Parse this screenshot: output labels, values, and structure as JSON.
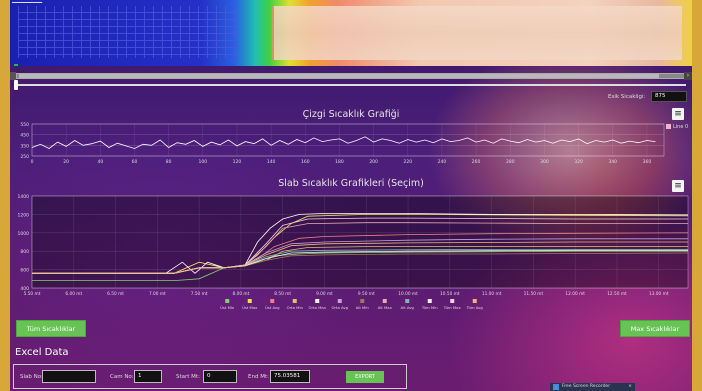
{
  "thermal": {
    "label": "━━━━━━━━━━"
  },
  "controls": {
    "esik_label": "Esik Sicakligi:",
    "esik_value": "875"
  },
  "line_chart": {
    "title": "Çizgi Sıcaklık Grafiği",
    "legend": "Line 0"
  },
  "slab_chart": {
    "title": "Slab Sıcaklık Grafikleri (Seçim)"
  },
  "buttons": {
    "tum": "Tüm Sıcaklıklar",
    "max": "Max Sıcaklıklar",
    "export": "EXPORT"
  },
  "excel": {
    "title": "Excel Data",
    "slab_no_label": "Slab No:",
    "slab_no_value": "",
    "cam_no_label": "Cam No:",
    "cam_no_value": "1",
    "start_label": "Start Mt:",
    "start_value": "0",
    "end_label": "End Mt:",
    "end_value": "75.03581"
  },
  "recorder": {
    "label": "Free Screen Recorder",
    "close": "×"
  },
  "colors": {
    "accent_green": "#67c354",
    "line_series": "#ffffff"
  },
  "chart_data": [
    {
      "type": "line",
      "title": "Çizgi Sıcaklık Grafiği",
      "xlabel": "",
      "ylabel": "",
      "xlim": [
        0,
        370
      ],
      "ylim": [
        250,
        550
      ],
      "xticks": [
        0,
        20,
        40,
        60,
        80,
        100,
        120,
        140,
        160,
        180,
        200,
        220,
        240,
        260,
        280,
        300,
        320,
        340,
        360
      ],
      "yticks": [
        250,
        350,
        450,
        550
      ],
      "legend": "top-right",
      "series": [
        {
          "name": "Line 0",
          "x": [
            0,
            5,
            10,
            15,
            20,
            25,
            30,
            35,
            40,
            45,
            50,
            55,
            60,
            65,
            70,
            75,
            80,
            85,
            90,
            95,
            100,
            105,
            110,
            115,
            120,
            125,
            130,
            135,
            140,
            145,
            150,
            155,
            160,
            165,
            170,
            175,
            180,
            185,
            190,
            195,
            200,
            205,
            210,
            215,
            220,
            225,
            230,
            235,
            240,
            245,
            250,
            255,
            260,
            265,
            270,
            275,
            280,
            285,
            290,
            295,
            300,
            305,
            310,
            315,
            320,
            325,
            330,
            335,
            340,
            345,
            350,
            355,
            360,
            365
          ],
          "y": [
            330,
            360,
            320,
            380,
            340,
            395,
            350,
            365,
            390,
            330,
            370,
            345,
            320,
            360,
            350,
            400,
            330,
            375,
            360,
            395,
            340,
            380,
            355,
            400,
            345,
            385,
            365,
            410,
            350,
            395,
            360,
            405,
            375,
            420,
            385,
            400,
            410,
            370,
            395,
            430,
            380,
            410,
            395,
            370,
            405,
            380,
            400,
            375,
            410,
            385,
            395,
            420,
            380,
            400,
            370,
            410,
            390,
            375,
            405,
            380,
            395,
            370,
            400,
            385,
            410,
            365,
            395,
            380,
            400,
            370,
            390,
            375,
            395,
            385
          ]
        }
      ]
    },
    {
      "type": "line",
      "title": "Slab Sıcaklık Grafikleri (Seçim)",
      "xlabel": "",
      "ylabel": "",
      "categories": [
        "5.50 mt",
        "6.00 mt",
        "6.50 mt",
        "7.00 mt",
        "7.50 mt",
        "8.00 mt",
        "8.50 mt",
        "9.00 mt",
        "9.50 mt",
        "10.00 mt",
        "10.50 mt",
        "11.00 mt",
        "11.50 mt",
        "12.00 mt",
        "12.50 mt",
        "13.00 mt"
      ],
      "xlim": [
        5.5,
        13.35
      ],
      "ylim": [
        400,
        1400
      ],
      "yticks": [
        400,
        600,
        800,
        1000,
        1200,
        1400
      ],
      "legend": "bottom",
      "series": [
        {
          "name": "Üst Min",
          "color": "#7fd36b",
          "x": [
            5.5,
            7.2,
            7.5,
            7.8,
            8.05,
            8.2,
            8.4,
            8.7,
            9.0,
            10,
            11,
            12,
            13.35
          ],
          "y": [
            480,
            480,
            500,
            620,
            640,
            690,
            750,
            770,
            780,
            790,
            795,
            800,
            800
          ]
        },
        {
          "name": "Üst Max",
          "color": "#f0e060",
          "x": [
            5.5,
            7.2,
            7.5,
            7.8,
            8.05,
            8.2,
            8.4,
            8.6,
            8.8,
            9.5,
            10,
            11,
            12,
            13.35
          ],
          "y": [
            560,
            560,
            680,
            620,
            650,
            760,
            950,
            1100,
            1180,
            1200,
            1200,
            1195,
            1190,
            1185
          ]
        },
        {
          "name": "Üst Avg",
          "color": "#f08080",
          "x": [
            5.5,
            7.2,
            7.5,
            7.8,
            8.05,
            8.2,
            8.4,
            8.7,
            9.0,
            10,
            11,
            12,
            13.35
          ],
          "y": [
            560,
            560,
            620,
            620,
            640,
            720,
            850,
            940,
            960,
            980,
            990,
            995,
            1000
          ]
        },
        {
          "name": "Orta Min",
          "color": "#e0c070",
          "x": [
            5.5,
            7.2,
            7.5,
            7.8,
            8.05,
            8.3,
            8.5,
            8.8,
            9.5,
            10,
            11,
            12,
            13.35
          ],
          "y": [
            560,
            560,
            620,
            620,
            650,
            700,
            800,
            840,
            850,
            850,
            850,
            850,
            850
          ]
        },
        {
          "name": "Orta Max",
          "color": "#ffffff",
          "x": [
            5.5,
            7.1,
            7.3,
            7.45,
            7.6,
            7.8,
            8.05,
            8.2,
            8.35,
            8.5,
            8.7,
            9.0,
            10,
            11,
            12,
            13.35
          ],
          "y": [
            560,
            560,
            680,
            560,
            680,
            620,
            650,
            900,
            1050,
            1150,
            1200,
            1210,
            1210,
            1200,
            1200,
            1195
          ]
        },
        {
          "name": "Orta Avg",
          "color": "#c9a0d8",
          "x": [
            5.5,
            7.2,
            7.5,
            7.8,
            8.05,
            8.3,
            8.6,
            9.0,
            10,
            11,
            12,
            13.35
          ],
          "y": [
            560,
            560,
            620,
            620,
            650,
            780,
            880,
            900,
            920,
            930,
            935,
            935
          ]
        },
        {
          "name": "Alt Min",
          "color": "#9c7a50",
          "x": [
            5.5,
            7.2,
            7.5,
            7.8,
            8.05,
            8.3,
            8.6,
            9.0,
            10,
            11,
            12,
            13.35
          ],
          "y": [
            560,
            560,
            620,
            620,
            640,
            700,
            750,
            760,
            770,
            770,
            775,
            780
          ]
        },
        {
          "name": "Alt Max",
          "color": "#e8a8b8",
          "x": [
            5.5,
            7.2,
            7.5,
            7.8,
            8.05,
            8.3,
            8.5,
            8.8,
            9.5,
            10,
            11,
            12,
            13.35
          ],
          "y": [
            560,
            560,
            620,
            620,
            650,
            850,
            1050,
            1100,
            1110,
            1110,
            1105,
            1100,
            1100
          ]
        },
        {
          "name": "Alt Avg",
          "color": "#7fb8b0",
          "x": [
            5.5,
            7.2,
            7.5,
            7.8,
            8.05,
            8.3,
            8.6,
            9.0,
            10,
            11,
            12,
            13.35
          ],
          "y": [
            560,
            560,
            620,
            620,
            640,
            740,
            800,
            810,
            815,
            820,
            820,
            820
          ]
        },
        {
          "name": "Tüm Min",
          "color": "#f0f0f0",
          "x": [
            5.5,
            7.2,
            7.5,
            7.8,
            8.05,
            8.3,
            8.6,
            9.0,
            10,
            11,
            12,
            13.35
          ],
          "y": [
            560,
            560,
            620,
            620,
            640,
            720,
            780,
            790,
            800,
            805,
            810,
            810
          ]
        },
        {
          "name": "Tüm Max",
          "color": "#f8d0d8",
          "x": [
            5.5,
            7.2,
            7.5,
            7.8,
            8.05,
            8.3,
            8.5,
            8.8,
            9.5,
            10,
            11,
            12,
            13.35
          ],
          "y": [
            560,
            560,
            620,
            620,
            650,
            880,
            1080,
            1150,
            1160,
            1160,
            1155,
            1150,
            1150
          ]
        },
        {
          "name": "Tüm Avg",
          "color": "#f0b878",
          "x": [
            5.5,
            7.2,
            7.5,
            7.8,
            8.05,
            8.3,
            8.6,
            9.0,
            10,
            11,
            12,
            13.35
          ],
          "y": [
            560,
            560,
            620,
            620,
            645,
            760,
            860,
            880,
            890,
            895,
            900,
            900
          ]
        }
      ]
    }
  ]
}
